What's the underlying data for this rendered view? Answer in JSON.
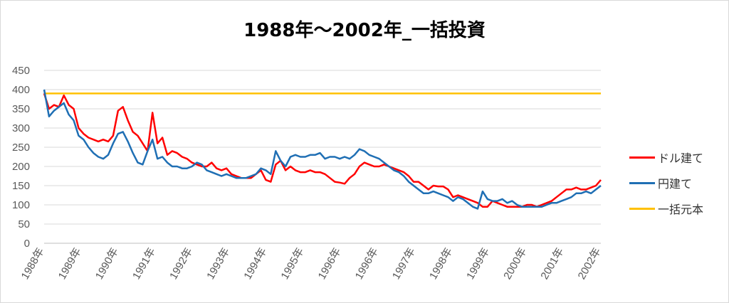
{
  "chart_data": {
    "type": "line",
    "title": "1988年～2002年_一括投資",
    "xlabel": "",
    "ylabel": "",
    "ylim": [
      0,
      450
    ],
    "yticks": [
      0,
      50,
      100,
      150,
      200,
      250,
      300,
      350,
      400,
      450
    ],
    "x_tick_labels": [
      "1988年",
      "1989年",
      "1990年",
      "1991年",
      "1992年",
      "1993年",
      "1994年",
      "1995年",
      "1996年",
      "1996年",
      "1997年",
      "1998年",
      "1999年",
      "2000年",
      "2001年",
      "2002年"
    ],
    "grid": true,
    "legend_position": "right",
    "series": [
      {
        "name": "ドル建て",
        "color": "#ff0000",
        "values": [
          390,
          350,
          360,
          355,
          385,
          360,
          350,
          300,
          285,
          275,
          270,
          265,
          270,
          265,
          280,
          345,
          355,
          320,
          290,
          280,
          260,
          240,
          340,
          260,
          275,
          230,
          240,
          235,
          225,
          220,
          210,
          205,
          200,
          200,
          210,
          195,
          190,
          195,
          180,
          175,
          170,
          170,
          170,
          180,
          190,
          165,
          160,
          205,
          215,
          190,
          200,
          190,
          185,
          185,
          190,
          185,
          185,
          180,
          170,
          160,
          158,
          155,
          170,
          180,
          200,
          210,
          205,
          200,
          200,
          205,
          200,
          195,
          190,
          185,
          175,
          160,
          160,
          150,
          140,
          150,
          148,
          148,
          140,
          120,
          125,
          120,
          115,
          110,
          105,
          95,
          95,
          110,
          105,
          100,
          95,
          95,
          95,
          95,
          100,
          100,
          95,
          100,
          105,
          110,
          120,
          130,
          140,
          140,
          145,
          140,
          140,
          145,
          150,
          165
        ]
      },
      {
        "name": "円建て",
        "color": "#1f6fb4",
        "values": [
          400,
          330,
          345,
          355,
          365,
          335,
          320,
          280,
          270,
          250,
          235,
          225,
          220,
          230,
          260,
          285,
          290,
          265,
          235,
          210,
          205,
          240,
          270,
          220,
          225,
          210,
          200,
          200,
          195,
          195,
          200,
          210,
          205,
          190,
          185,
          180,
          175,
          180,
          175,
          170,
          170,
          170,
          175,
          180,
          195,
          190,
          180,
          240,
          215,
          200,
          225,
          230,
          225,
          225,
          230,
          230,
          235,
          220,
          225,
          225,
          220,
          225,
          220,
          230,
          245,
          240,
          230,
          225,
          220,
          210,
          200,
          190,
          185,
          175,
          160,
          150,
          140,
          130,
          130,
          135,
          130,
          125,
          120,
          110,
          120,
          115,
          105,
          95,
          90,
          135,
          115,
          110,
          110,
          115,
          105,
          110,
          100,
          95,
          95,
          95,
          95,
          95,
          100,
          105,
          105,
          110,
          115,
          120,
          130,
          130,
          135,
          130,
          140,
          150
        ]
      },
      {
        "name": "一括元本",
        "color": "#ffc000",
        "values": [
          390,
          390,
          390,
          390,
          390,
          390,
          390,
          390,
          390,
          390,
          390,
          390,
          390,
          390,
          390,
          390,
          390,
          390,
          390,
          390,
          390,
          390,
          390,
          390,
          390,
          390,
          390,
          390,
          390,
          390,
          390,
          390,
          390,
          390,
          390,
          390,
          390,
          390,
          390,
          390,
          390,
          390,
          390,
          390,
          390,
          390,
          390,
          390,
          390,
          390,
          390,
          390,
          390,
          390,
          390,
          390,
          390,
          390,
          390,
          390,
          390,
          390,
          390,
          390,
          390,
          390,
          390,
          390,
          390,
          390,
          390,
          390,
          390,
          390,
          390,
          390,
          390,
          390,
          390,
          390,
          390,
          390,
          390,
          390,
          390,
          390,
          390,
          390,
          390,
          390,
          390,
          390,
          390,
          390,
          390,
          390,
          390,
          390,
          390,
          390,
          390,
          390,
          390,
          390,
          390,
          390,
          390,
          390,
          390,
          390,
          390,
          390,
          390,
          390
        ]
      }
    ]
  }
}
